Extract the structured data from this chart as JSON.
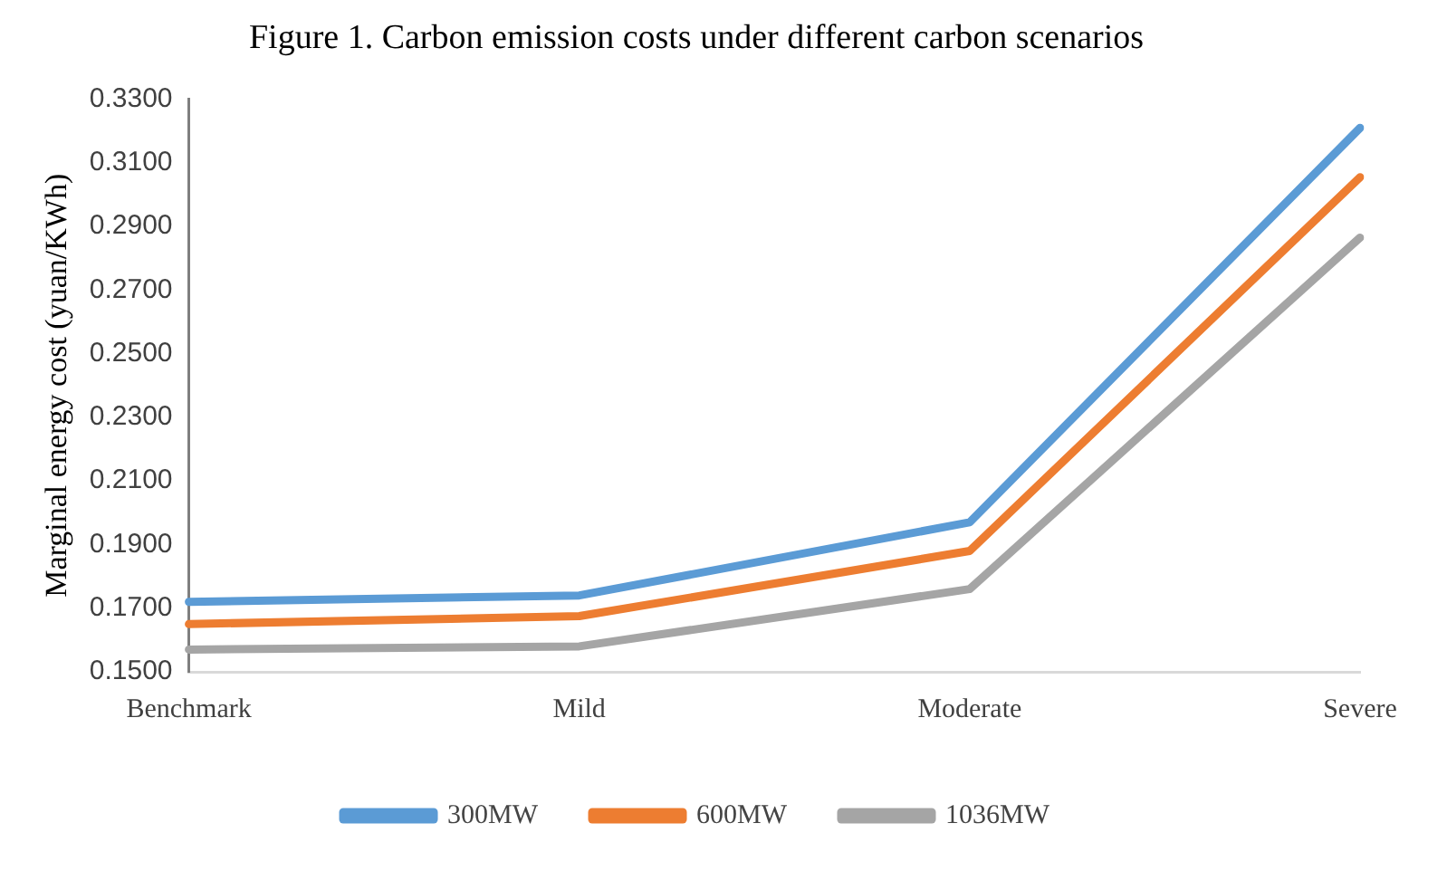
{
  "chart_data": {
    "type": "line",
    "title": "Figure 1. Carbon emission costs under different carbon scenarios",
    "ylabel": "Marginal energy cost (yuan/KWh)",
    "categories": [
      "Benchmark",
      "Mild",
      "Moderate",
      "Severe"
    ],
    "series": [
      {
        "name": "300MW",
        "color": "#5b9bd5",
        "values": [
          0.172,
          0.174,
          0.197,
          0.321
        ]
      },
      {
        "name": "600MW",
        "color": "#ed7d31",
        "values": [
          0.165,
          0.1675,
          0.188,
          0.3055
        ]
      },
      {
        "name": "1036MW",
        "color": "#a5a5a5",
        "values": [
          0.157,
          0.158,
          0.176,
          0.2865
        ]
      }
    ],
    "ylim": [
      0.15,
      0.33
    ],
    "yticks": [
      {
        "value": 0.15,
        "label": "0.1500"
      },
      {
        "value": 0.17,
        "label": "0.1700"
      },
      {
        "value": 0.19,
        "label": "0.1900"
      },
      {
        "value": 0.21,
        "label": "0.2100"
      },
      {
        "value": 0.23,
        "label": "0.2300"
      },
      {
        "value": 0.25,
        "label": "0.2500"
      },
      {
        "value": 0.27,
        "label": "0.2700"
      },
      {
        "value": 0.29,
        "label": "0.2900"
      },
      {
        "value": 0.31,
        "label": "0.3100"
      },
      {
        "value": 0.33,
        "label": "0.3300"
      }
    ],
    "grid": false,
    "legend": "bottom",
    "marker": "none",
    "line_style": "solid"
  }
}
